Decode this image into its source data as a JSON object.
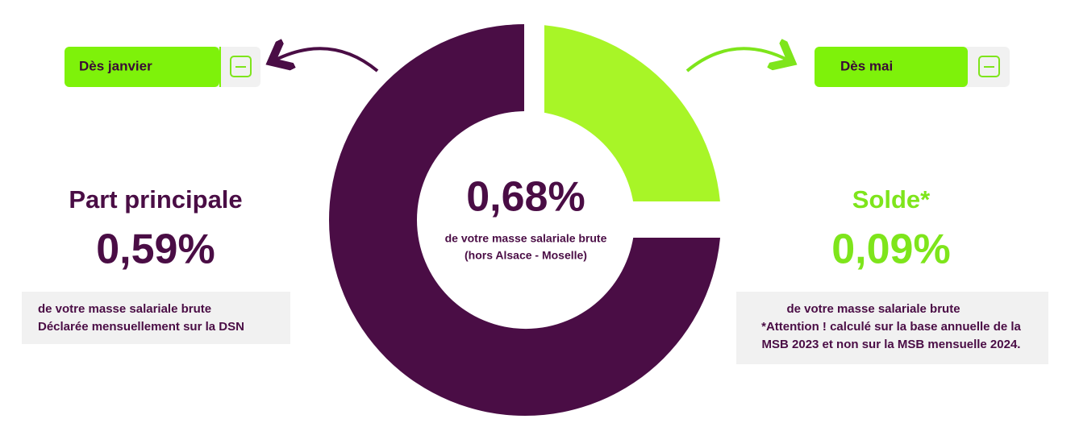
{
  "left": {
    "badge": "Dès janvier",
    "title": "Part principale",
    "value": "0,59%",
    "description": [
      "de votre masse salariale brute",
      "Déclarée mensuellement sur la DSN"
    ]
  },
  "center": {
    "value": "0,68%",
    "description": [
      "de votre masse salariale brute",
      "(hors Alsace - Moselle)"
    ]
  },
  "right": {
    "badge": "Dès mai",
    "title": "Solde*",
    "value": "0,09%",
    "description": [
      "de votre masse salariale brute",
      "*Attention ! calculé sur la base annuelle de la",
      "MSB 2023 et non sur la MSB mensuelle 2024."
    ]
  }
}
